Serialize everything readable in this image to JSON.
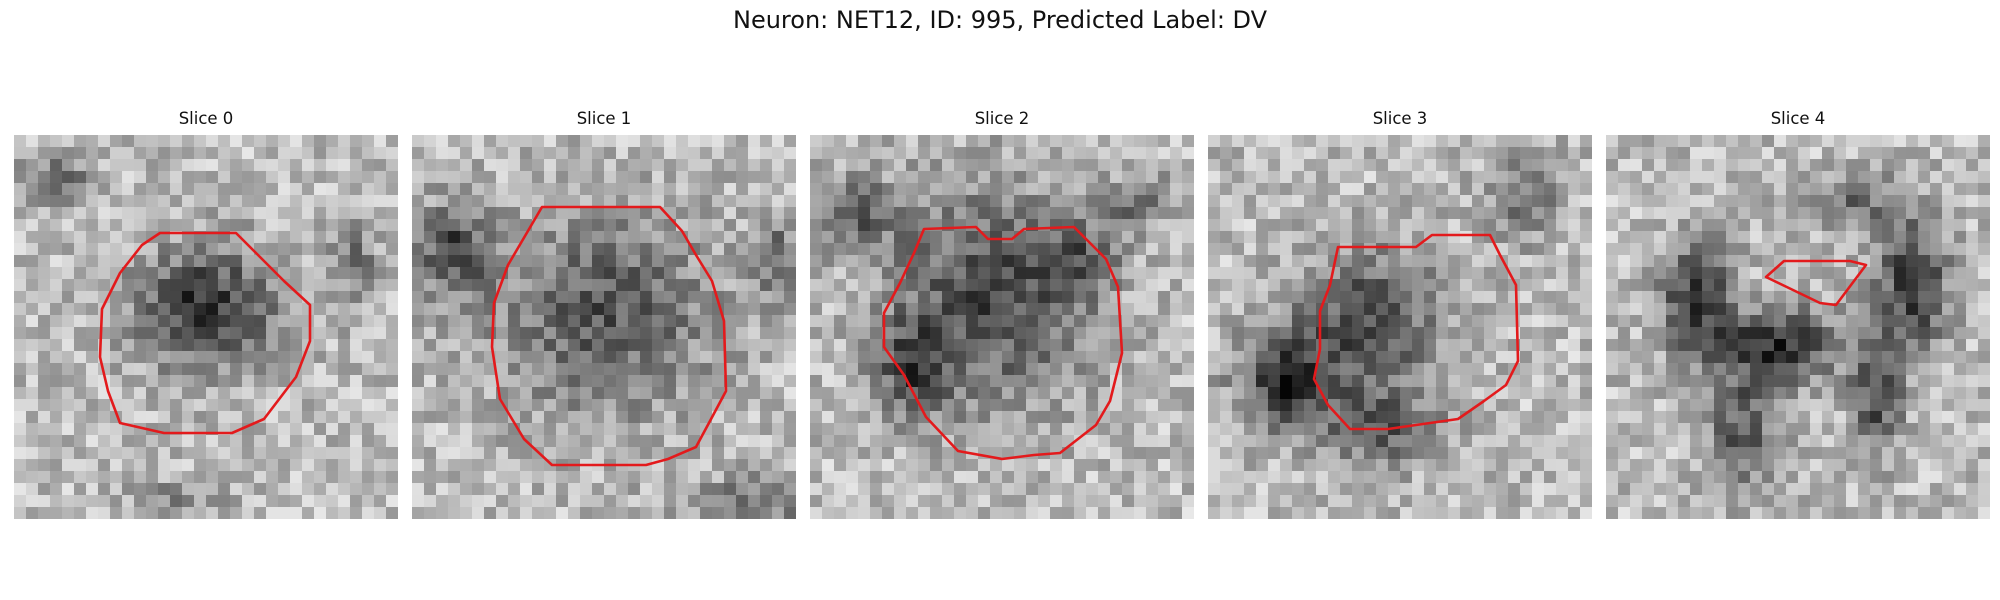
{
  "figure": {
    "title": "Neuron: NET12, ID: 995, Predicted Label: DV"
  },
  "panels": [
    {
      "title": "Slice 0",
      "contour_color": "#e31a1c"
    },
    {
      "title": "Slice 1",
      "contour_color": "#e31a1c"
    },
    {
      "title": "Slice 2",
      "contour_color": "#e31a1c"
    },
    {
      "title": "Slice 3",
      "contour_color": "#e31a1c"
    },
    {
      "title": "Slice 4",
      "contour_color": "#e31a1c"
    }
  ]
}
